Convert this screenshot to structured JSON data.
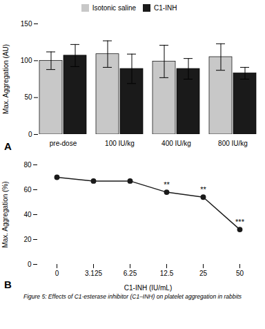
{
  "chart_data": [
    {
      "type": "bar",
      "panel_label": "A",
      "categories": [
        "pre-dose",
        "100 IU/kg",
        "400 IU/kg",
        "800 IU/kg"
      ],
      "series": [
        {
          "name": "Isotonic saline",
          "color": "#c8c8c8",
          "values": [
            100,
            109,
            99,
            105
          ],
          "errors": [
            12,
            18,
            22,
            18
          ]
        },
        {
          "name": "C1-INH",
          "color": "#1a1a1a",
          "values": [
            107,
            89,
            89,
            83
          ],
          "errors": [
            15,
            20,
            14,
            8
          ]
        }
      ],
      "ylabel": "Max. Aggregation (AU)",
      "ylim": [
        0,
        150
      ],
      "yticks": [
        0,
        50,
        100,
        150
      ],
      "legend": "top",
      "grid": false
    },
    {
      "type": "line",
      "panel_label": "B",
      "categories": [
        "0",
        "3.125",
        "6.25",
        "12.5",
        "25",
        "50"
      ],
      "values": [
        70,
        67,
        67,
        58,
        54,
        28
      ],
      "color": "#1a1a1a",
      "marker": "circle",
      "xlabel": "C1-INH (IU/mL)",
      "ylabel": "Max. Aggregation (%)",
      "ylim": [
        0,
        80
      ],
      "yticks": [
        0,
        20,
        40,
        60,
        80
      ],
      "annotations": [
        {
          "x": "12.5",
          "y": 58,
          "text": "**"
        },
        {
          "x": "25",
          "y": 54,
          "text": "**"
        },
        {
          "x": "50",
          "y": 28,
          "text": "***"
        }
      ],
      "grid": false
    }
  ],
  "caption": "Figure 5: Effects of C1-esterase inhibitor (C1–INH) on platelet aggregation in rabbits"
}
